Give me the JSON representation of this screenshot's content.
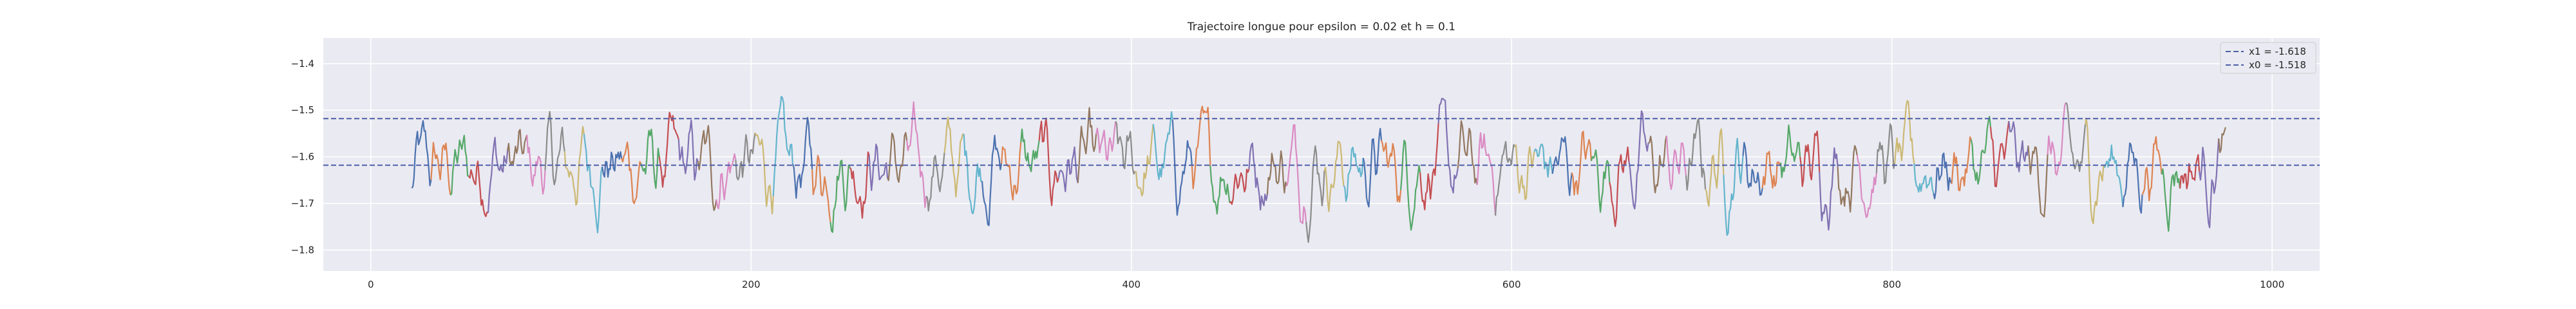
{
  "chart_data": {
    "type": "line",
    "title": "Trajectoire longue pour epsilon = 0.02 et h = 0.1",
    "xlabel": "",
    "ylabel": "",
    "xlim": [
      -25,
      1025
    ],
    "ylim": [
      -1.845,
      -1.345
    ],
    "x_ticks": [
      0,
      200,
      400,
      600,
      800,
      1000
    ],
    "x_tick_labels": [
      "0",
      "200",
      "400",
      "600",
      "800",
      "1000"
    ],
    "y_ticks": [
      -1.4,
      -1.5,
      -1.6,
      -1.7,
      -1.8
    ],
    "y_tick_labels": [
      "−1.4",
      "−1.5",
      "−1.6",
      "−1.7",
      "−1.8"
    ],
    "grid": true,
    "background": "#eaeaf2",
    "legend_position": "upper right",
    "hlines": [
      {
        "name": "x1 = -1.618",
        "y": -1.618,
        "color": "#4c5fa8",
        "style": "dashed"
      },
      {
        "name": "x0 = -1.518",
        "y": -1.518,
        "color": "#4c5fa8",
        "style": "dashed"
      }
    ],
    "trajectory": {
      "x_start": 21.5,
      "x_end": 976,
      "segment_length": 10,
      "y_range": [
        -1.805,
        -1.365
      ],
      "palette": [
        "#4c72b0",
        "#dd8452",
        "#55a868",
        "#c44e52",
        "#8172b3",
        "#937860",
        "#da8bc3",
        "#8c8c8c",
        "#ccb974",
        "#64b5cd"
      ]
    }
  }
}
